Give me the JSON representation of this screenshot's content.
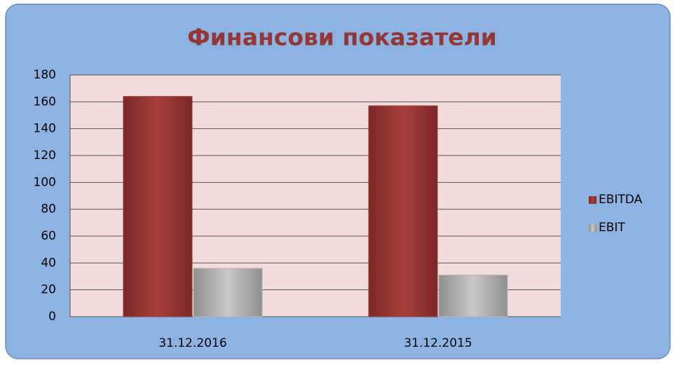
{
  "chart_data": {
    "type": "bar",
    "title": "Финансови показатели",
    "categories": [
      "31.12.2016",
      "31.12.2015"
    ],
    "series": [
      {
        "name": "EBITDA",
        "color": "#9b3a38",
        "values": [
          164,
          157
        ]
      },
      {
        "name": "EBIT",
        "color": "#b5b5b5",
        "values": [
          36,
          31
        ]
      }
    ],
    "ylim": [
      0,
      180
    ],
    "yticks": [
      0,
      20,
      40,
      60,
      80,
      100,
      120,
      140,
      160,
      180
    ],
    "grid": true,
    "legend": "right"
  }
}
